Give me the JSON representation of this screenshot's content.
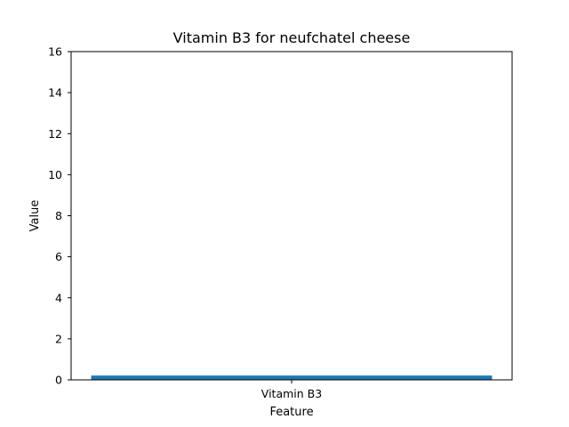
{
  "chart_data": {
    "type": "bar",
    "title": "Vitamin B3 for neufchatel cheese",
    "xlabel": "Feature",
    "ylabel": "Value",
    "categories": [
      "Vitamin B3"
    ],
    "values": [
      0.21
    ],
    "ylim": [
      0,
      16
    ],
    "yticks": [
      "0",
      "2",
      "4",
      "6",
      "8",
      "10",
      "12",
      "14",
      "16"
    ],
    "grid": false,
    "bar_color": "#1f77b4"
  }
}
